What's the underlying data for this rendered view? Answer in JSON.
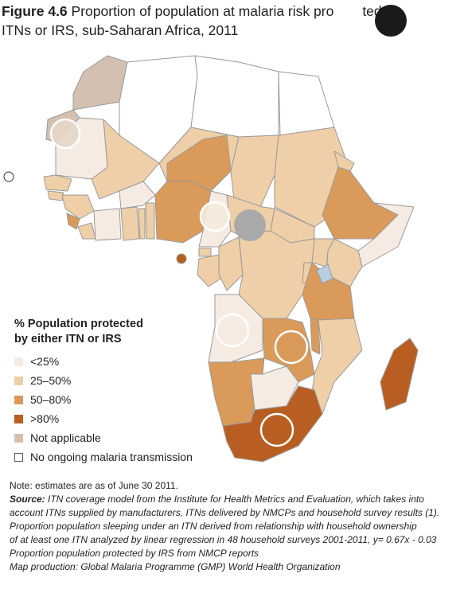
{
  "title": {
    "figure_label": "Figure 4.6",
    "text_part1": "Proportion of population at malaria risk pro",
    "text_part2": "ted by",
    "text_line2": "ITNs or IRS, sub-Saharan Africa, 2011"
  },
  "legend": {
    "heading_line1": "% Population protected",
    "heading_line2": "by either ITN or IRS",
    "items": [
      {
        "label": "<25%",
        "color": "#f6ebe2"
      },
      {
        "label": "25–50%",
        "color": "#efcfa8"
      },
      {
        "label": "50–80%",
        "color": "#d99a5a"
      },
      {
        "label": ">80%",
        "color": "#b85e22"
      },
      {
        "label": "Not applicable",
        "color": "#d3c0b1"
      },
      {
        "label": "No ongoing malaria transmission",
        "color": "#ffffff"
      }
    ]
  },
  "colors": {
    "border": "#9a9a9a",
    "land_none": "#ffffff",
    "lt25": "#f6ebe2",
    "p25_50": "#efcfa8",
    "p50_80": "#d99a5a",
    "gt80": "#b85e22",
    "na": "#d3c0b1",
    "redaction_gray": "#a9a9a9",
    "redaction_black": "#1a1a1a"
  },
  "notes": {
    "line1": "Note: estimates are as of June 30 2011.",
    "source_label": "Source:",
    "source_text": " ITN coverage model from the Institute for Health Metrics and Evaluation, which takes into",
    "line3": "account ITNs supplied by manufacturers, ITNs delivered by NMCPs and household survey results (1).",
    "line4": "Proportion population sleeping under an ITN derived from relationship with household ownership",
    "line5": "of at least one ITN analyzed by linear regression in 48 household surveys 2001-2011, y= 0.67x - 0.03",
    "line6": "Proportion population protected by IRS from NMCP reports",
    "line7": " Map production: Global Malaria Programme (GMP) World Health Organization"
  }
}
